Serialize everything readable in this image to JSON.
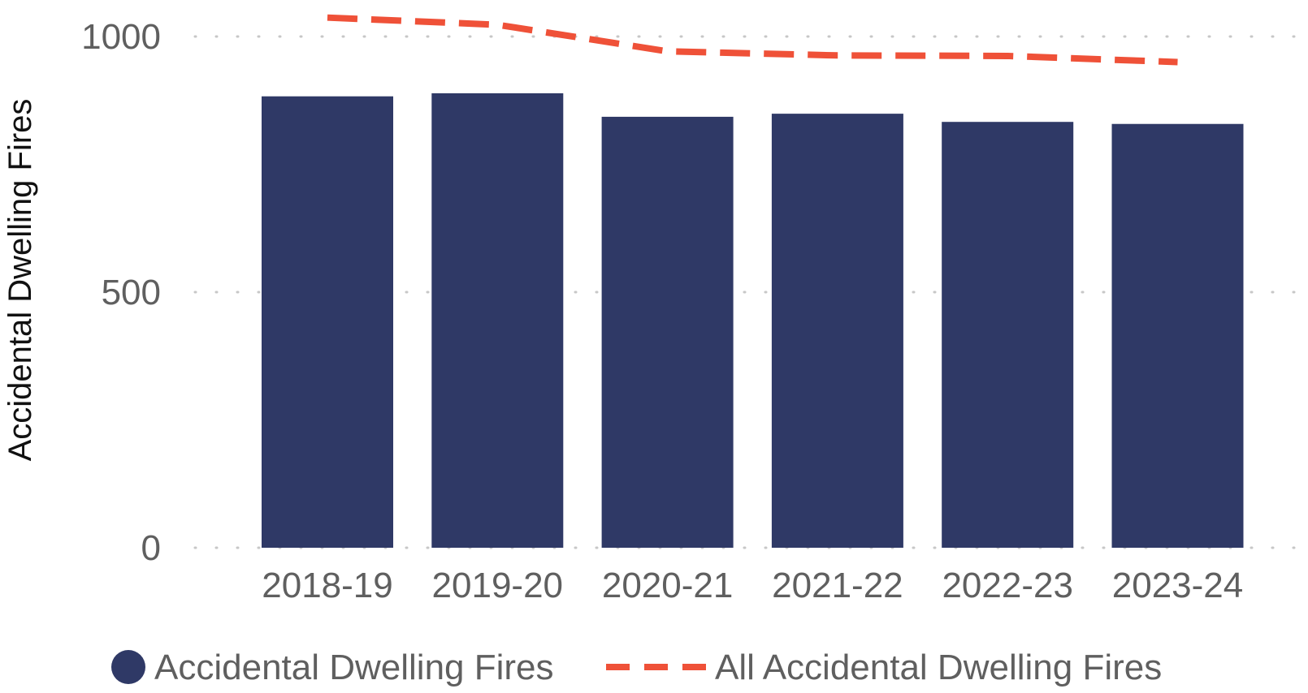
{
  "chart_data": {
    "type": "bar",
    "title": "",
    "xlabel": "",
    "ylabel": "Accidental Dwelling Fires",
    "categories": [
      "2018-19",
      "2019-20",
      "2020-21",
      "2021-22",
      "2022-23",
      "2023-24"
    ],
    "ylim": [
      0,
      1000
    ],
    "yticks": [
      0,
      500,
      1000
    ],
    "grid": true,
    "legend_position": "bottom",
    "series": [
      {
        "name": "Accidental Dwelling Fires",
        "type": "bar",
        "color": "#2f3966",
        "values": [
          883,
          889,
          843,
          849,
          833,
          829
        ]
      },
      {
        "name": "All Accidental Dwelling Fires",
        "type": "line",
        "style": "dashed",
        "color": "#ef5138",
        "values": [
          1037,
          1023,
          971,
          963,
          962,
          950
        ]
      }
    ]
  }
}
